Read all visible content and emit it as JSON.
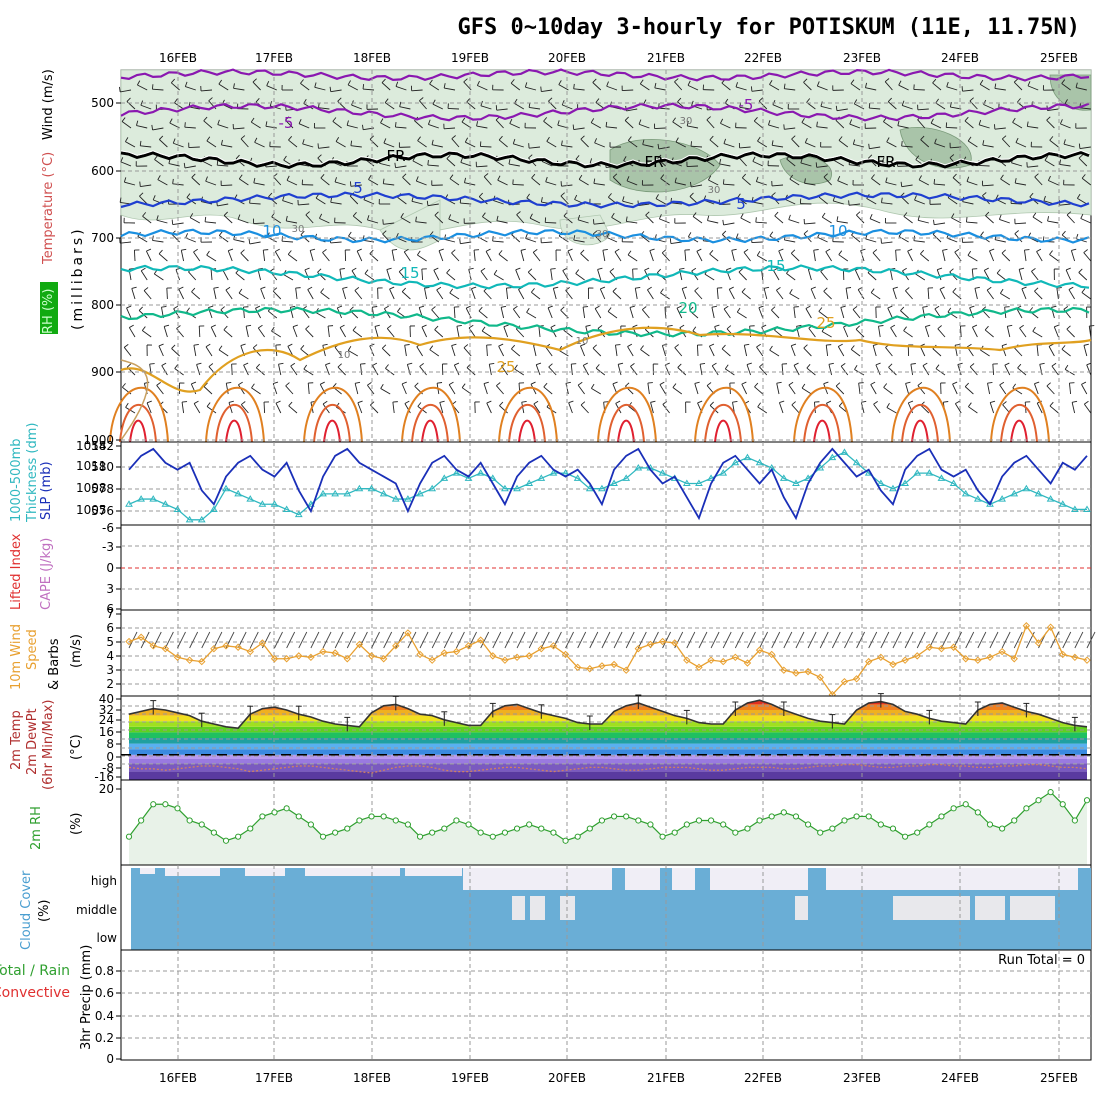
{
  "header": {
    "title": "GFS 0~10day 3-hourly for POTISKUM (11E, 11.75N)"
  },
  "dates": [
    "16FEB",
    "17FEB",
    "18FEB",
    "19FEB",
    "20FEB",
    "21FEB",
    "22FEB",
    "23FEB",
    "24FEB",
    "25FEB"
  ],
  "colors": {
    "rh_fill": "#dcebdc",
    "rh_dark": "#a9c4a9",
    "purple": "#8a18b0",
    "blue": "#1f3fd0",
    "lightblue": "#1a8fe0",
    "cyan": "#10b8b8",
    "teal": "#10b88a",
    "orange": "#e0a020",
    "red": "#e02030",
    "slp": "#1a2fb8",
    "thickness": "#30b8c0",
    "wind10": "#e8a030",
    "rh2m": "#30a030",
    "cloud": "#6aaed6",
    "cloud_bg": "#f0eef6"
  },
  "panels": {
    "upper_air": {
      "ylabel_rh": "RH (%)",
      "ylabel_temp": "Temperature (°C)",
      "ylabel_wind": "Wind (m/s)",
      "ylabel_unit": "(millibars)",
      "yticks": [
        "500",
        "600",
        "700",
        "800",
        "900",
        "1000"
      ],
      "contour_labels": [
        "-5",
        "-5",
        "FR",
        "FR",
        "FR",
        "5",
        "5",
        "10",
        "10",
        "15",
        "15",
        "20",
        "25",
        "25",
        "30",
        "30",
        "30",
        "30",
        "10",
        "10"
      ]
    },
    "slp": {
      "ylabel_left": "1000-500mb",
      "ylabel_left2": "Thickness (dm)",
      "ylabel_right": "SLP (mb)",
      "yticks_left": [
        "582",
        "580",
        "578",
        "576"
      ],
      "yticks_right": [
        "1014",
        "1011",
        "1008",
        "1005"
      ]
    },
    "lifted": {
      "ylabel_li": "Lifted Index",
      "ylabel_cape": "CAPE (J/kg)",
      "yticks": [
        "-6",
        "-3",
        "0",
        "3",
        "6"
      ]
    },
    "wind10": {
      "ylabel1": "10m Wind",
      "ylabel2": "Speed",
      "ylabel3": "& Barbs",
      "ylabel_unit": "(m/s)",
      "yticks": [
        "7",
        "6",
        "5",
        "4",
        "3",
        "2"
      ]
    },
    "temp2m": {
      "ylabel1": "2m Temp",
      "ylabel2": "2m DewPt",
      "ylabel3": "(6hr Min/Max)",
      "ylabel_unit": "(°C)",
      "yticks": [
        "40",
        "32",
        "24",
        "16",
        "8",
        "0",
        "-8",
        "-16"
      ]
    },
    "rh2m": {
      "ylabel": "2m RH",
      "ylabel_unit": "(%)",
      "yticks": [
        "20"
      ]
    },
    "cloud": {
      "ylabel": "Cloud Cover",
      "ylabel_unit": "(%)",
      "levels": [
        "high",
        "middle",
        "low"
      ]
    },
    "precip": {
      "ylabel1": "Total / Rain",
      "ylabel2": "Convective",
      "ylabel3": "3hr Precip (mm)",
      "yticks": [
        "0.8",
        "0.6",
        "0.4",
        "0.2",
        "0"
      ],
      "run_total": "Run Total = 0"
    }
  },
  "chart_data": [
    {
      "type": "line",
      "name": "SLP",
      "x": [
        0,
        1,
        2,
        3,
        4,
        5,
        6,
        7,
        8,
        9,
        10,
        11,
        12,
        13,
        14,
        15,
        16,
        17,
        18,
        19,
        20,
        21,
        22,
        23,
        24,
        25,
        26,
        27,
        28,
        29,
        30,
        31,
        32,
        33,
        34,
        35,
        36,
        37,
        38,
        39,
        40,
        41,
        42,
        43,
        44,
        45,
        46,
        47,
        48,
        49,
        50,
        51,
        52,
        53,
        54,
        55,
        56,
        57,
        58,
        59,
        60,
        61,
        62,
        63,
        64,
        65,
        66,
        67,
        68,
        69,
        70,
        71,
        72,
        73,
        74,
        75,
        76,
        77,
        78,
        79
      ],
      "values": [
        1011,
        1013,
        1014,
        1012,
        1011,
        1012,
        1008,
        1006,
        1010,
        1012,
        1013,
        1011,
        1010,
        1012,
        1008,
        1005,
        1010,
        1013,
        1014,
        1012,
        1011,
        1010,
        1009,
        1005,
        1009,
        1012,
        1013,
        1011,
        1010,
        1012,
        1009,
        1006,
        1010,
        1012,
        1013,
        1011,
        1010,
        1011,
        1009,
        1006,
        1011,
        1013,
        1014,
        1011,
        1009,
        1010,
        1007,
        1004,
        1009,
        1012,
        1013,
        1011,
        1009,
        1011,
        1007,
        1004,
        1009,
        1012,
        1014,
        1012,
        1010,
        1011,
        1008,
        1006,
        1011,
        1013,
        1014,
        1011,
        1010,
        1011,
        1008,
        1006,
        1010,
        1012,
        1013,
        1011,
        1009,
        1012,
        1011,
        1013
      ],
      "ylim": [
        1003,
        1015
      ]
    },
    {
      "type": "line",
      "name": "1000-500mb Thickness",
      "values": [
        576.5,
        577,
        577,
        576.5,
        576,
        575,
        575,
        576,
        578,
        577.5,
        577,
        576.5,
        576.5,
        576,
        575.5,
        576.5,
        577.5,
        577.5,
        577.5,
        578,
        578,
        577.5,
        577,
        577,
        577.5,
        578,
        579,
        579.5,
        579,
        579.5,
        579,
        578,
        578,
        578.5,
        579,
        579.5,
        579.5,
        579,
        578,
        578,
        578.5,
        579,
        580,
        580,
        579.5,
        579,
        578.5,
        578.5,
        579,
        579.5,
        580.5,
        581,
        580.5,
        580,
        579,
        578.5,
        579,
        580,
        581,
        581.5,
        580.5,
        579.5,
        578.5,
        578,
        578.5,
        579.5,
        579.5,
        579,
        578.5,
        577.5,
        577,
        576.5,
        577,
        577.5,
        578,
        577.5,
        577,
        576.5,
        576,
        576
      ],
      "ylim": [
        574.5,
        582.5
      ]
    },
    {
      "type": "line",
      "name": "10m Wind Speed",
      "values": [
        5.3,
        5.6,
        5.0,
        4.8,
        4.2,
        4.0,
        3.9,
        4.8,
        5.0,
        4.9,
        4.6,
        5.2,
        4.1,
        4.1,
        4.3,
        4.2,
        4.6,
        4.5,
        4.1,
        5.1,
        4.3,
        4.1,
        5.0,
        5.9,
        4.4,
        4.0,
        4.5,
        4.6,
        5.0,
        5.4,
        4.3,
        4.0,
        4.2,
        4.3,
        4.8,
        5.0,
        4.4,
        3.5,
        3.4,
        3.6,
        3.7,
        3.3,
        4.8,
        5.1,
        5.3,
        5.2,
        4.0,
        3.5,
        4.0,
        3.9,
        4.2,
        3.8,
        4.7,
        4.4,
        3.3,
        3.1,
        3.2,
        2.8,
        1.6,
        2.5,
        2.7,
        3.9,
        4.2,
        3.7,
        4.0,
        4.3,
        4.9,
        4.8,
        4.9,
        4.1,
        4.0,
        4.2,
        4.6,
        4.1,
        6.4,
        5.2,
        6.3,
        4.4,
        4.2,
        4.0
      ],
      "ylim": [
        1.5,
        7.5
      ]
    },
    {
      "type": "area",
      "name": "2m Temp",
      "values": [
        29,
        31,
        33,
        32,
        30,
        28,
        24,
        22,
        20,
        19,
        29,
        33,
        34,
        32,
        29,
        27,
        24,
        22,
        21,
        20,
        30,
        35,
        36,
        33,
        29,
        28,
        25,
        23,
        21,
        21,
        31,
        35,
        36,
        33,
        30,
        28,
        26,
        23,
        22,
        22,
        31,
        35,
        37,
        34,
        31,
        28,
        26,
        23,
        22,
        22,
        32,
        37,
        39,
        36,
        32,
        29,
        26,
        24,
        23,
        22,
        32,
        37,
        38,
        36,
        31,
        29,
        26,
        24,
        23,
        22,
        32,
        36,
        37,
        34,
        31,
        29,
        26,
        23,
        21,
        20
      ],
      "ylim": [
        -18,
        42
      ]
    },
    {
      "type": "line",
      "name": "2m DewPt",
      "values": [
        -9,
        -10,
        -10,
        -11,
        -10,
        -9,
        -8,
        -8,
        -9,
        -10,
        -12,
        -11,
        -10,
        -9,
        -8,
        -8,
        -9,
        -10,
        -11,
        -12,
        -13,
        -11,
        -9,
        -8,
        -8,
        -9,
        -11,
        -12,
        -12,
        -11,
        -10,
        -9,
        -9,
        -10,
        -11,
        -12,
        -11,
        -10,
        -9,
        -9,
        -10,
        -11,
        -11,
        -10,
        -9,
        -9,
        -9,
        -10,
        -11,
        -11,
        -10,
        -9,
        -9,
        -9,
        -10,
        -10,
        -9,
        -8,
        -8,
        -7,
        -7,
        -8,
        -9,
        -9,
        -8,
        -8,
        -7,
        -7,
        -8,
        -8,
        -9,
        -9,
        -8,
        -8,
        -7,
        -7,
        -8,
        -9,
        -9,
        -10
      ],
      "ylim": [
        -18,
        42
      ]
    },
    {
      "type": "line",
      "name": "2m RH",
      "values": [
        7,
        11,
        15,
        15,
        14,
        11,
        10,
        8,
        6,
        7,
        9,
        12,
        13,
        14,
        12,
        10,
        7,
        8,
        9,
        11,
        12,
        12,
        11,
        10,
        7,
        8,
        9,
        11,
        10,
        8,
        7,
        8,
        9,
        10,
        9,
        8,
        6,
        7,
        9,
        11,
        12,
        12,
        11,
        10,
        7,
        8,
        10,
        11,
        11,
        10,
        8,
        9,
        11,
        12,
        13,
        12,
        10,
        8,
        9,
        11,
        12,
        12,
        10,
        9,
        7,
        8,
        10,
        12,
        14,
        15,
        13,
        10,
        9,
        11,
        14,
        16,
        18,
        15,
        11,
        16
      ],
      "ylim": [
        0,
        21
      ]
    },
    {
      "type": "bar",
      "name": "3hr Precip",
      "values": [
        0
      ],
      "ylim": [
        0,
        1
      ]
    }
  ]
}
